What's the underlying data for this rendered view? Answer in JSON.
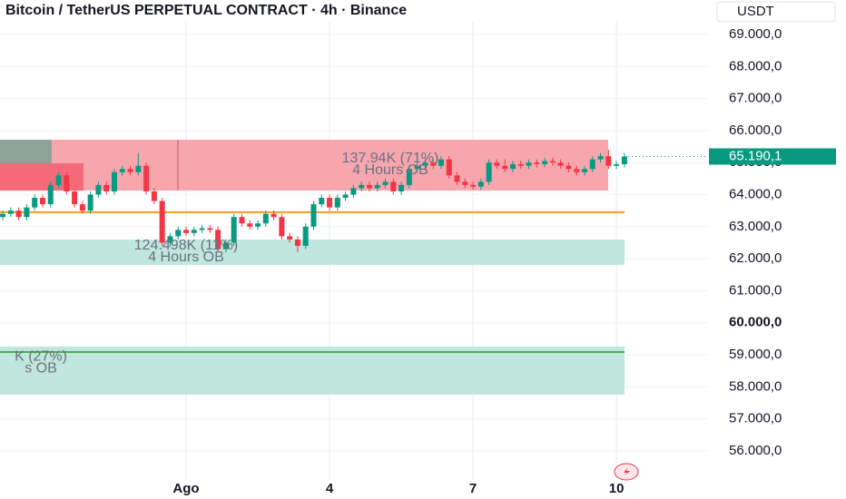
{
  "chart_data": {
    "type": "candlestick",
    "title": "Bitcoin / TetherUS PERPETUAL CONTRACT · 4h · Binance",
    "currency": "USDT",
    "up_color": "#089981",
    "down_color": "#f23645",
    "categories": [
      null,
      null,
      null,
      null,
      null,
      null,
      null,
      null,
      null,
      null,
      null,
      null,
      null,
      null,
      null,
      null,
      null,
      null,
      null,
      null,
      null,
      null,
      null,
      "Ago",
      null,
      null,
      null,
      null,
      null,
      null,
      null,
      null,
      null,
      null,
      null,
      null,
      null,
      null,
      null,
      null,
      null,
      "4",
      null,
      null,
      null,
      null,
      null,
      null,
      null,
      null,
      null,
      null,
      null,
      null,
      null,
      null,
      null,
      null,
      null,
      "7",
      null,
      null,
      null,
      null,
      null,
      null,
      null,
      null,
      null,
      null,
      null,
      null,
      null,
      null,
      null,
      null,
      null,
      "10",
      null
    ],
    "open": [
      63300,
      63400,
      63500,
      63300,
      63600,
      63900,
      63700,
      64300,
      64600,
      64100,
      63700,
      63500,
      64000,
      64300,
      64100,
      64700,
      64800,
      64700,
      64900,
      64100,
      63800,
      62500,
      62700,
      62900,
      62800,
      62900,
      62950,
      62900,
      62300,
      62500,
      63300,
      63100,
      63000,
      63100,
      63400,
      63300,
      62700,
      62600,
      62400,
      63000,
      63700,
      63900,
      63600,
      63900,
      64000,
      64200,
      64300,
      64200,
      64300,
      64400,
      64100,
      64300,
      64800,
      64900,
      65000,
      64900,
      65100,
      64600,
      64400,
      64300,
      64250,
      64400,
      65000,
      64900,
      64800,
      64950,
      64900,
      65000,
      64950,
      65050,
      65000,
      64900,
      64800,
      64700,
      64800,
      65100,
      65200,
      64900,
      64950
    ],
    "high": [
      63500,
      63600,
      63600,
      63700,
      64000,
      64000,
      64400,
      64700,
      64700,
      64200,
      63800,
      64100,
      64400,
      64400,
      64800,
      64900,
      64900,
      65300,
      65000,
      64200,
      63900,
      62800,
      63000,
      63000,
      63000,
      63050,
      63050,
      63000,
      62600,
      63400,
      63400,
      63200,
      63200,
      63500,
      63500,
      63400,
      62800,
      62700,
      63100,
      63800,
      64000,
      64000,
      64000,
      64100,
      64300,
      64400,
      64400,
      64400,
      64500,
      64500,
      64400,
      64900,
      65000,
      65100,
      65100,
      65200,
      65200,
      64700,
      64500,
      64400,
      64500,
      65100,
      65100,
      65100,
      65050,
      65050,
      65100,
      65100,
      65150,
      65150,
      65100,
      65000,
      64900,
      64900,
      65200,
      65300,
      65400,
      65050,
      65300
    ],
    "low": [
      63200,
      63300,
      63200,
      63200,
      63500,
      63600,
      63600,
      64200,
      64000,
      63600,
      63400,
      63400,
      63900,
      64000,
      64000,
      64600,
      64600,
      64600,
      64000,
      63700,
      62400,
      62400,
      62600,
      62700,
      62700,
      62800,
      62800,
      62200,
      62200,
      62400,
      63000,
      62900,
      62900,
      63000,
      63200,
      62600,
      62500,
      62200,
      62300,
      62900,
      63600,
      63500,
      63500,
      63800,
      63900,
      64100,
      64100,
      64100,
      64200,
      64000,
      64000,
      64200,
      64700,
      64800,
      64800,
      64800,
      64500,
      64300,
      64200,
      64150,
      64150,
      64300,
      64800,
      64700,
      64700,
      64800,
      64800,
      64850,
      64850,
      64900,
      64800,
      64700,
      64600,
      64600,
      64700,
      65000,
      64800,
      64800,
      64850
    ],
    "close": [
      63400,
      63500,
      63300,
      63600,
      63900,
      63700,
      64300,
      64600,
      64100,
      63700,
      63500,
      64000,
      64300,
      64100,
      64700,
      64800,
      64700,
      64900,
      64100,
      63800,
      62500,
      62700,
      62900,
      62800,
      62900,
      62950,
      62900,
      62300,
      62500,
      63300,
      63100,
      63000,
      63100,
      63400,
      63300,
      62700,
      62600,
      62400,
      63000,
      63700,
      63900,
      63600,
      63900,
      64000,
      64200,
      64300,
      64200,
      64300,
      64400,
      64100,
      64300,
      64800,
      64900,
      65000,
      64900,
      65100,
      64600,
      64400,
      64300,
      64250,
      64400,
      65000,
      64900,
      64800,
      64950,
      64900,
      65000,
      64950,
      65050,
      65000,
      64900,
      64800,
      64700,
      64800,
      65100,
      65200,
      64900,
      64950,
      65190.1
    ],
    "last_price": {
      "value": 65190.1,
      "label": "65.190,1"
    },
    "ylim": [
      55600,
      69900
    ],
    "yticks": [
      {
        "value": 56000,
        "label": "56.000,0"
      },
      {
        "value": 57000,
        "label": "57.000,0"
      },
      {
        "value": 58000,
        "label": "58.000,0"
      },
      {
        "value": 59000,
        "label": "59.000,0"
      },
      {
        "value": 60000,
        "label": "60.000,0"
      },
      {
        "value": 61000,
        "label": "61.000,0"
      },
      {
        "value": 62000,
        "label": "62.000,0"
      },
      {
        "value": 63000,
        "label": "63.000,0"
      },
      {
        "value": 64000,
        "label": "64.000,0"
      },
      {
        "value": 65000,
        "label": "65.000,0"
      },
      {
        "value": 66000,
        "label": "66.000,0"
      },
      {
        "value": 67000,
        "label": "67.000,0"
      },
      {
        "value": 68000,
        "label": "68.000,0"
      },
      {
        "value": 69000,
        "label": "69.000,0"
      }
    ],
    "zones": [
      {
        "top": 65714,
        "bottom": 64127,
        "color": "#f7a1aa",
        "labels": [
          "137.94K (71%)",
          "4 Hours OB"
        ]
      },
      {
        "top": 62598,
        "bottom": 61805,
        "color": "#bde5dc",
        "labels": [
          "124.498K (11%)",
          "4 Hours OB"
        ]
      },
      {
        "top": 59255,
        "bottom": 57754,
        "color": "#bde5dc",
        "labels": [
          "K (27%)",
          "s OB"
        ]
      }
    ],
    "levels": [
      {
        "value": 63450,
        "color": "#f59c1a"
      },
      {
        "value": 59085,
        "color": "#4caf50"
      }
    ]
  }
}
